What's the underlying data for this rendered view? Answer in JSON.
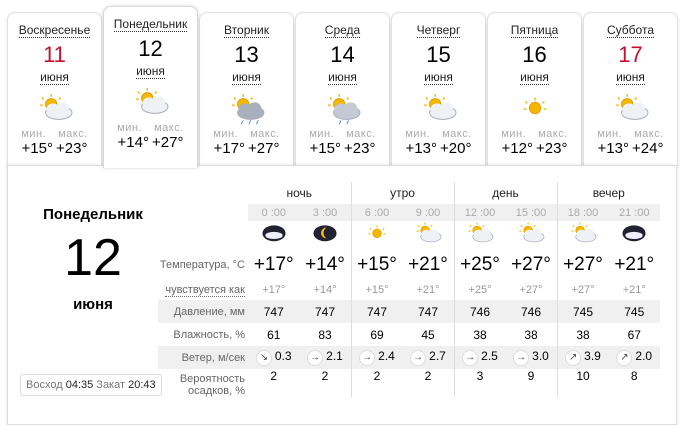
{
  "days": [
    {
      "name": "Воскресенье",
      "date": "11",
      "month": "июня",
      "icon": "sun-cloud-icon",
      "min": "+15°",
      "max": "+23°",
      "weekend": true
    },
    {
      "name": "Понедельник",
      "date": "12",
      "month": "июня",
      "icon": "sun-cloud-icon",
      "min": "+14°",
      "max": "+27°",
      "weekend": false
    },
    {
      "name": "Вторник",
      "date": "13",
      "month": "июня",
      "icon": "thunderstorm-rain-icon",
      "min": "+17°",
      "max": "+27°",
      "weekend": false
    },
    {
      "name": "Среда",
      "date": "14",
      "month": "июня",
      "icon": "sun-cloud-rain-icon",
      "min": "+15°",
      "max": "+23°",
      "weekend": false
    },
    {
      "name": "Четверг",
      "date": "15",
      "month": "июня",
      "icon": "sun-cloud-icon",
      "min": "+13°",
      "max": "+20°",
      "weekend": false
    },
    {
      "name": "Пятница",
      "date": "16",
      "month": "июня",
      "icon": "sun-icon",
      "min": "+12°",
      "max": "+23°",
      "weekend": false
    },
    {
      "name": "Суббота",
      "date": "17",
      "month": "июня",
      "icon": "sun-cloud-icon",
      "min": "+13°",
      "max": "+24°",
      "weekend": true
    }
  ],
  "labels": {
    "min": "мин.",
    "max": "макс."
  },
  "detail": {
    "day": "Понедельник",
    "date": "12",
    "month": "июня",
    "sunrise_label": "Восход",
    "sunrise": "04:35",
    "sunset_label": "Закат",
    "sunset": "20:43"
  },
  "periods": [
    "ночь",
    "утро",
    "день",
    "вечер"
  ],
  "times": [
    "0 :00",
    "3 :00",
    "6 :00",
    "9 :00",
    "12 :00",
    "15 :00",
    "18 :00",
    "21 :00"
  ],
  "icons": [
    "night-cloud-icon",
    "moon-icon",
    "sun-icon",
    "sun-cloud-icon",
    "sun-cloud-icon",
    "sun-cloud-icon",
    "sun-cloud-icon",
    "night-cloud-icon"
  ],
  "rows": {
    "temp": {
      "label": "Температура, °C",
      "values": [
        "+17°",
        "+14°",
        "+15°",
        "+21°",
        "+25°",
        "+27°",
        "+27°",
        "+21°"
      ]
    },
    "feels": {
      "label": "чувствуется как",
      "values": [
        "+17°",
        "+14°",
        "+15°",
        "+21°",
        "+25°",
        "+27°",
        "+27°",
        "+21°"
      ]
    },
    "pressure": {
      "label": "Давление, мм",
      "values": [
        "747",
        "747",
        "747",
        "747",
        "746",
        "746",
        "745",
        "745"
      ]
    },
    "humidity": {
      "label": "Влажность, %",
      "values": [
        "61",
        "83",
        "69",
        "45",
        "38",
        "38",
        "38",
        "67"
      ]
    },
    "wind": {
      "label": "Ветер, м/сек",
      "dirs": [
        "↘",
        "→",
        "→",
        "→",
        "→",
        "→",
        "↗",
        "↗"
      ],
      "values": [
        "0.3",
        "2.1",
        "2.4",
        "2.7",
        "2.5",
        "3.0",
        "3.9",
        "2.0"
      ]
    },
    "precip": {
      "label": "Вероятность осадков, %",
      "values": [
        "2",
        "2",
        "2",
        "2",
        "3",
        "9",
        "10",
        "8"
      ]
    }
  },
  "colors": {
    "weekend": "#c8102e",
    "sun": "#f5b800"
  }
}
